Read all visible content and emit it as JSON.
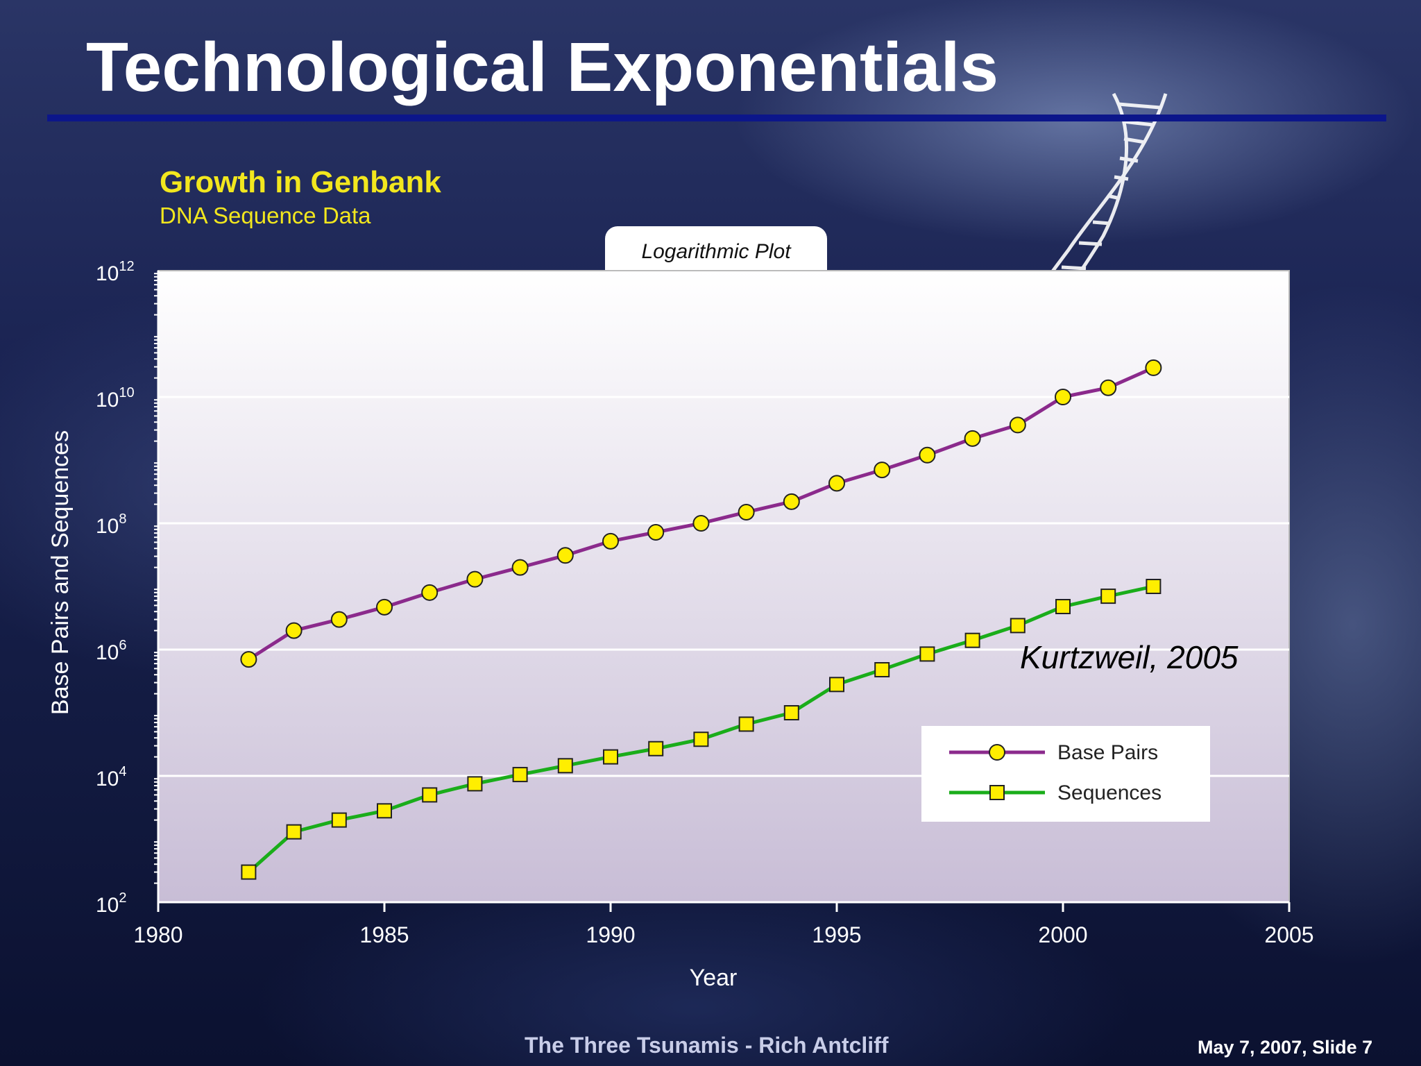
{
  "slide": {
    "title": "Technological Exponentials",
    "footer_center": "The Three Tsunamis - Rich Antcliff",
    "footer_right": "May 7, 2007,  Slide 7",
    "accent_rule_color": "#0c168a"
  },
  "chart_data": {
    "type": "line",
    "title": "Growth in Genbank",
    "subtitle": "DNA Sequence Data",
    "plot_tab_label": "Logarithmic Plot",
    "xlabel": "Year",
    "ylabel": "Base Pairs and Sequences",
    "y_scale": "log",
    "xlim": [
      1980,
      2005
    ],
    "ylim": [
      100,
      1000000000000
    ],
    "x_ticks": [
      1980,
      1985,
      1990,
      1995,
      2000,
      2005
    ],
    "x_tick_labels": [
      "1980",
      "1985",
      "1990",
      "1995",
      "2000",
      "2005"
    ],
    "y_tick_labels": [
      {
        "base": "10",
        "exp": "2"
      },
      {
        "base": "10",
        "exp": "4"
      },
      {
        "base": "10",
        "exp": "6"
      },
      {
        "base": "10",
        "exp": "8"
      },
      {
        "base": "10",
        "exp": "10"
      },
      {
        "base": "10",
        "exp": "12"
      }
    ],
    "grid": true,
    "legend_position": "bottom-right",
    "annotation": "Kurtzweil, 2005",
    "x": [
      1982,
      1983,
      1984,
      1985,
      1986,
      1987,
      1988,
      1989,
      1990,
      1991,
      1992,
      1993,
      1994,
      1995,
      1996,
      1997,
      1998,
      1999,
      2000,
      2001,
      2002
    ],
    "series": [
      {
        "name": "Base Pairs",
        "color": "#8b2a8c",
        "marker": "circle",
        "values": [
          700000,
          2000000,
          3000000,
          4700000,
          8000000,
          13000000,
          20000000,
          31000000,
          52000000,
          72000000,
          100000000,
          150000000,
          220000000,
          430000000,
          700000000,
          1200000000,
          2200000000,
          3600000000,
          10000000000,
          14000000000,
          29000000000
        ]
      },
      {
        "name": "Sequences",
        "color": "#1aad1a",
        "marker": "square",
        "values": [
          300,
          1300,
          2000,
          2800,
          5000,
          7500,
          10500,
          14500,
          20000,
          27000,
          38000,
          66000,
          100000,
          280000,
          480000,
          850000,
          1400000,
          2400000,
          4800000,
          7000000,
          10000000
        ]
      }
    ]
  }
}
